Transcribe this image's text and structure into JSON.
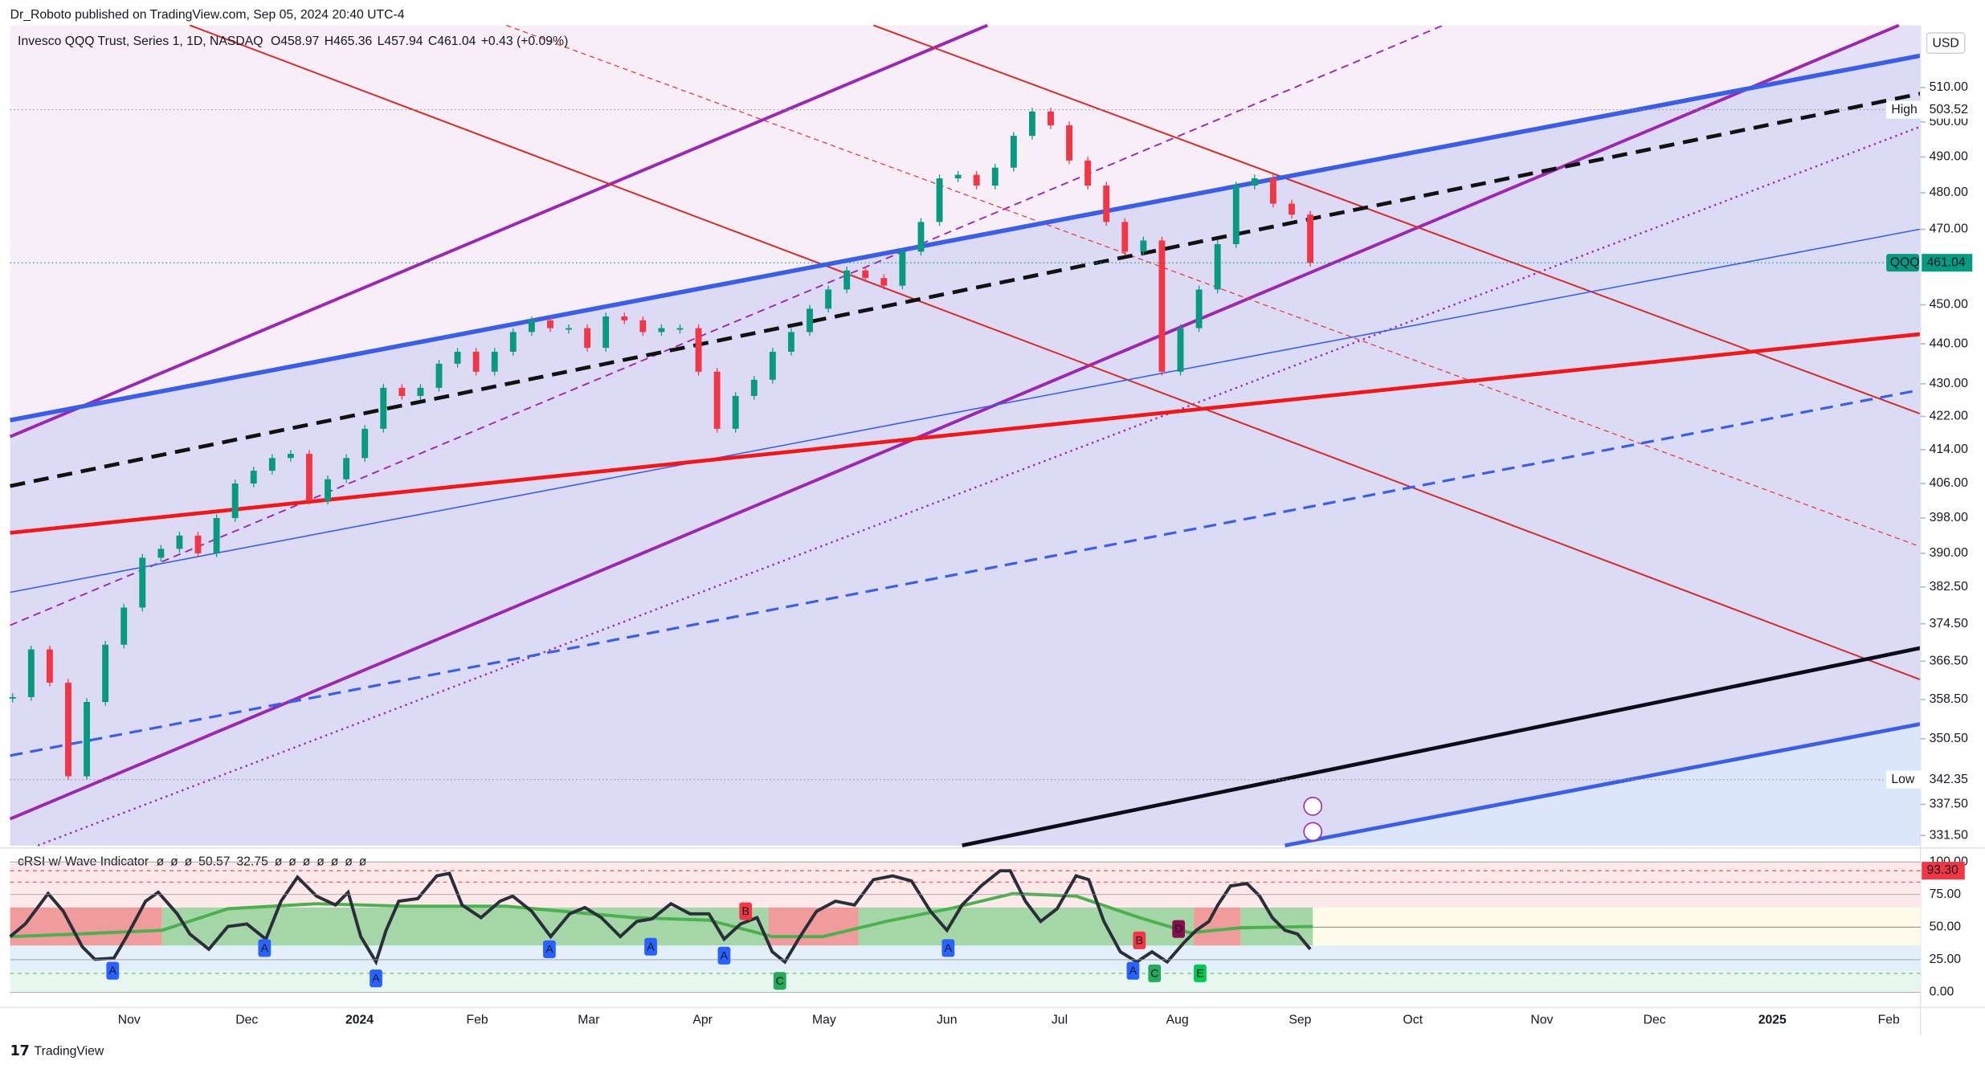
{
  "header": {
    "published": "Dr_Roboto published on TradingView.com, Sep 05, 2024 20:40 UTC-4"
  },
  "legend": {
    "symbol": "Invesco QQQ Trust, Series 1, 1D, NASDAQ",
    "items": [
      {
        "label": "O",
        "value": "458.97"
      },
      {
        "label": "H",
        "value": "465.36"
      },
      {
        "label": "L",
        "value": "457.94"
      },
      {
        "label": "C",
        "value": "461.04"
      }
    ],
    "change": "+0.43 (+0.09%)"
  },
  "chart_data": {
    "type": "candlestick",
    "log": true,
    "ylim": [
      329.6,
      528.6
    ],
    "values": [
      359,
      369,
      362,
      343,
      358,
      370,
      378,
      389,
      391,
      394,
      390,
      398,
      406,
      409,
      412,
      413,
      402,
      407,
      412,
      419,
      429,
      427,
      429,
      435,
      438,
      433,
      438,
      443,
      446,
      444,
      444,
      439,
      447,
      446,
      443,
      444,
      444,
      433,
      419,
      427,
      431,
      438,
      443,
      449,
      454,
      459,
      457,
      455,
      464,
      472,
      484,
      485,
      482,
      487,
      496,
      503,
      499,
      489,
      482,
      472,
      464,
      467,
      433,
      444,
      454,
      466,
      482,
      484,
      477,
      474,
      461
    ],
    "yticks": [
      {
        "value": 510,
        "label": "510.00"
      },
      {
        "value": 500,
        "label": "500.00"
      },
      {
        "value": 490,
        "label": "490.00"
      },
      {
        "value": 480,
        "label": "480.00"
      },
      {
        "value": 470,
        "label": "470.00"
      },
      {
        "value": 450,
        "label": "450.00"
      },
      {
        "value": 440,
        "label": "440.00"
      },
      {
        "value": 430,
        "label": "430.00"
      },
      {
        "value": 422,
        "label": "422.00"
      },
      {
        "value": 414,
        "label": "414.00"
      },
      {
        "value": 406,
        "label": "406.00"
      },
      {
        "value": 398,
        "label": "398.00"
      },
      {
        "value": 390,
        "label": "390.00"
      },
      {
        "value": 382.5,
        "label": "382.50"
      },
      {
        "value": 374.5,
        "label": "374.50"
      },
      {
        "value": 366.5,
        "label": "366.50"
      },
      {
        "value": 358.5,
        "label": "358.50"
      },
      {
        "value": 350.5,
        "label": "350.50"
      },
      {
        "value": 337.5,
        "label": "337.50"
      },
      {
        "value": 331.5,
        "label": "331.50"
      }
    ],
    "x_labels": [
      "Nov",
      "Dec",
      "2024",
      "Feb",
      "Mar",
      "Apr",
      "May",
      "Jun",
      "Jul",
      "Aug",
      "Sep",
      "Oct",
      "Nov",
      "Dec",
      "2025",
      "Feb"
    ],
    "markers": [
      {
        "name": "High",
        "value": 503.52
      },
      {
        "name": "QQQ",
        "value": 461.04
      },
      {
        "name": "Low",
        "value": 342.35
      }
    ],
    "currency": "USD"
  },
  "indicator": {
    "title": "cRSI w/ Wave Indicator",
    "readout": [
      "ø",
      "ø",
      "ø",
      "50.57",
      "32.75",
      "ø",
      "ø",
      "ø",
      "ø",
      "ø",
      "ø",
      "ø"
    ],
    "yticks": [
      {
        "value": 100,
        "label": "100.00"
      },
      {
        "value": 75,
        "label": "75.00"
      },
      {
        "value": 50,
        "label": "50.00"
      },
      {
        "value": 25,
        "label": "25.00"
      },
      {
        "value": 0,
        "label": "0.00"
      }
    ],
    "current": 93.3,
    "current_label": "93.30",
    "badges": [
      "A",
      "A",
      "A",
      "A",
      "A",
      "A",
      "C",
      "B",
      "A",
      "B",
      "A",
      "C",
      "D",
      "E"
    ]
  },
  "footer": "TradingView"
}
